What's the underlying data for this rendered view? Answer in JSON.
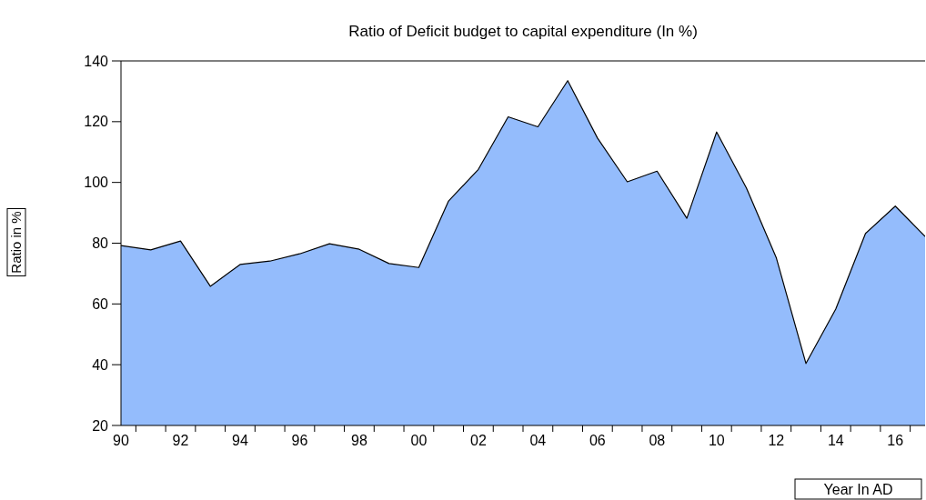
{
  "chart_data": {
    "type": "area",
    "title": "Ratio of Deficit budget to capital expenditure (In %)",
    "xlabel": "Year In AD",
    "ylabel": "Ratio in %",
    "categories": [
      "90",
      null,
      "92",
      null,
      "94",
      null,
      "96",
      null,
      "98",
      null,
      "00",
      null,
      "02",
      null,
      "04",
      null,
      "06",
      null,
      "08",
      null,
      "10",
      null,
      "12",
      null,
      "14",
      null,
      "16",
      null
    ],
    "series": [
      {
        "color": "#94bcfc",
        "values": [
          79.2,
          77.8,
          80.7,
          65.8,
          73.0,
          74.1,
          76.5,
          79.8,
          78.0,
          73.3,
          72.0,
          93.9,
          104.3,
          121.6,
          118.3,
          133.5,
          114.6,
          100.2,
          103.7,
          88.2,
          116.6,
          98.2,
          75.3,
          40.4,
          58.3,
          83.2,
          92.2,
          82.2
        ]
      }
    ],
    "ylim": [
      20,
      140
    ],
    "yticks": [
      20,
      40,
      60,
      80,
      100,
      120,
      140
    ]
  }
}
